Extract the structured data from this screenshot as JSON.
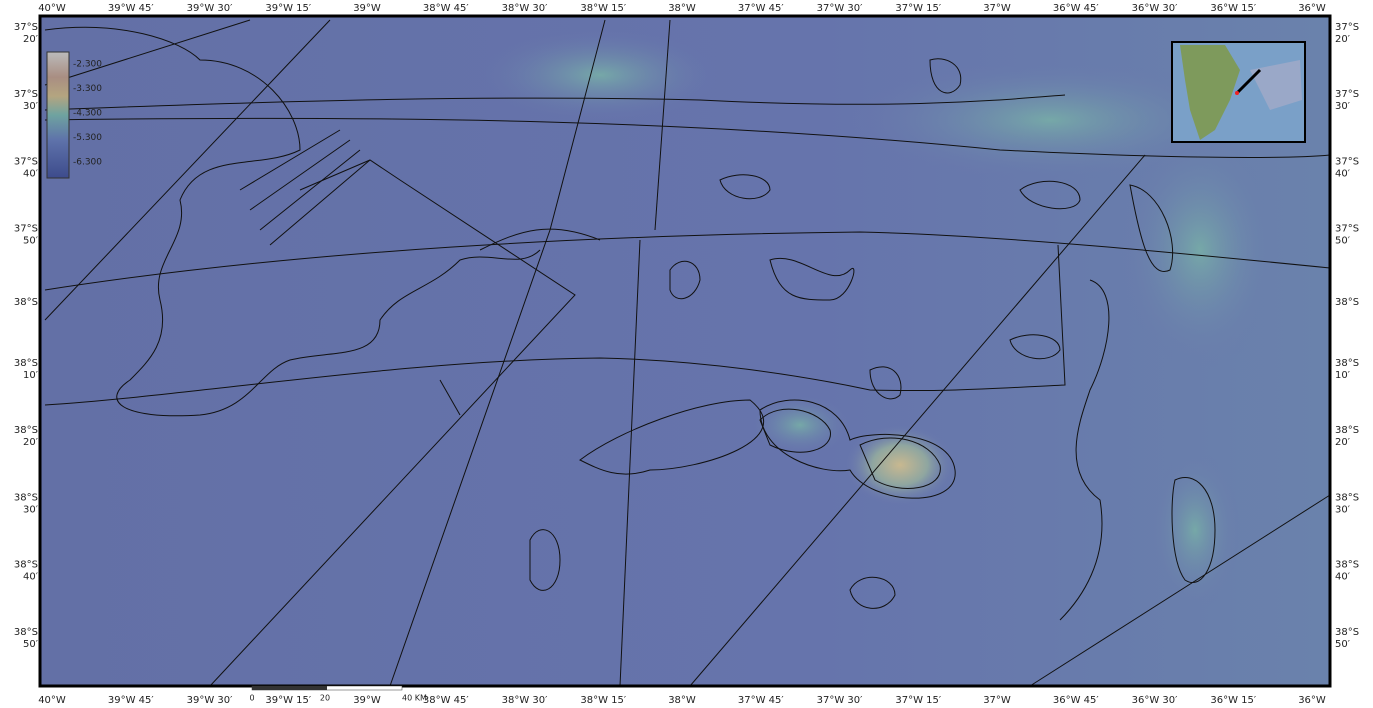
{
  "lon_labels": [
    "40°W",
    "39°W 45′",
    "39°W 30′",
    "39°W 15′",
    "39°W",
    "38°W 45′",
    "38°W 30′",
    "38°W 15′",
    "38°W",
    "37°W 45′",
    "37°W 30′",
    "37°W 15′",
    "37°W",
    "36°W 45′",
    "36°W 30′",
    "36°W 15′",
    "36°W"
  ],
  "lat_labels": [
    [
      "37°S",
      "20′"
    ],
    [
      "37°S",
      "30′"
    ],
    [
      "37°S",
      "40′"
    ],
    [
      "37°S",
      "50′"
    ],
    [
      "38°S"
    ],
    [
      "38°S",
      "10′"
    ],
    [
      "38°S",
      "20′"
    ],
    [
      "38°S",
      "30′"
    ],
    [
      "38°S",
      "40′"
    ],
    [
      "38°S",
      "50′"
    ]
  ],
  "legend": [
    "-2.300",
    "-3.300",
    "-4.300",
    "-5.300",
    "-6.300"
  ],
  "scale_bar": [
    "0",
    "20",
    "40 KM"
  ]
}
